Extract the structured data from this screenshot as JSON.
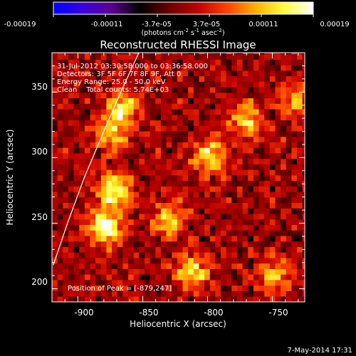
{
  "colorbar": {
    "tick_labels": [
      "-0.00019",
      "-0.00011",
      "-3.7e-05",
      "3.7e-05",
      "0.00011",
      "0.00019"
    ],
    "unit_main": "(photons cm",
    "unit_exp1": "-2",
    "unit_mid": " s",
    "unit_exp2": "-1",
    "unit_tail": " asec",
    "unit_exp3": "-2",
    "unit_close": ")",
    "colors": [
      "#0000ff",
      "#3b00e0",
      "#5a0090",
      "#000000",
      "#6b0000",
      "#c00000",
      "#ff4000",
      "#ffb000",
      "#ffff40",
      "#ffffff"
    ]
  },
  "chart_data": {
    "type": "heatmap",
    "title": "Reconstructed RHESSI Image",
    "xlabel": "Heliocentric X (arcsec)",
    "ylabel": "Heliocentric Y (arcsec)",
    "xlim": [
      -920,
      -725
    ],
    "ylim": [
      190,
      380
    ],
    "xticks": [
      "-900",
      "-850",
      "-800",
      "-750"
    ],
    "xtick_values": [
      -900,
      -850,
      -800,
      -750
    ],
    "yticks": [
      "200",
      "250",
      "300",
      "350"
    ],
    "ytick_values": [
      200,
      250,
      300,
      350
    ],
    "value_range": [
      -0.00019,
      0.00019
    ],
    "info_lines": [
      "31-Jul-2012 03:30:58.000 to 03:36:58.000",
      "Detectors: 3F 5F 6F 7F 8F 9F, Att 0",
      "Energy Range: 25.0 - 50.0 keV",
      "Clean    Total counts: 5.74E+03"
    ],
    "peak_label": "Position of Peak = [-879,247]",
    "peak": [
      -879,
      247
    ],
    "limb_arc": [
      [
        -919,
        218
      ],
      [
        -908,
        250
      ],
      [
        -895,
        285
      ],
      [
        -880,
        320
      ],
      [
        -866,
        352
      ],
      [
        -853,
        380
      ]
    ],
    "sources": [
      {
        "x": -879,
        "y": 247,
        "peak": 0.00019
      },
      {
        "x": -872,
        "y": 275,
        "peak": 0.00017
      },
      {
        "x": -866,
        "y": 338,
        "peak": 0.00014
      },
      {
        "x": -875,
        "y": 318,
        "peak": 0.00012
      },
      {
        "x": -798,
        "y": 302,
        "peak": 0.00014
      },
      {
        "x": -770,
        "y": 328,
        "peak": 0.00012
      },
      {
        "x": -830,
        "y": 252,
        "peak": 0.00012
      },
      {
        "x": -812,
        "y": 213,
        "peak": 0.00014
      },
      {
        "x": -748,
        "y": 210,
        "peak": 0.00011
      },
      {
        "x": -733,
        "y": 345,
        "peak": 9e-05
      }
    ]
  },
  "footer": {
    "date": "7-May-2014 17:31"
  }
}
